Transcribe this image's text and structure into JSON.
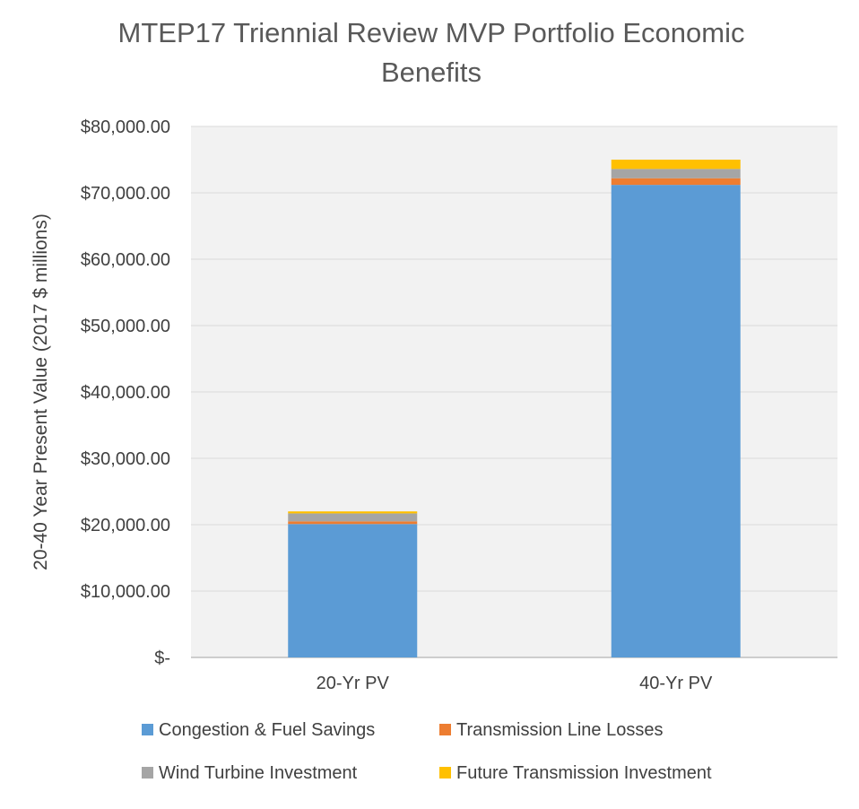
{
  "chart_data": {
    "type": "bar",
    "stacked": true,
    "title": [
      "MTEP17 Triennial Review MVP Portfolio  Economic",
      "Benefits"
    ],
    "ylabel": "20-40 Year Present Value (2017 $ millions)",
    "xlabel": "",
    "categories": [
      "20-Yr PV",
      "40-Yr PV"
    ],
    "ylim": [
      0,
      80000
    ],
    "yticks": [
      0,
      10000,
      20000,
      30000,
      40000,
      50000,
      60000,
      70000,
      80000
    ],
    "ytick_labels": [
      "$-",
      "$10,000.00",
      "$20,000.00",
      "$30,000.00",
      "$40,000.00",
      "$50,000.00",
      "$60,000.00",
      "$70,000.00",
      "$80,000.00"
    ],
    "grid": true,
    "legend_position": "bottom",
    "series": [
      {
        "name": "Congestion & Fuel Savings",
        "color": "#5b9bd5",
        "values": [
          20100,
          71200
        ]
      },
      {
        "name": "Transmission Line Losses",
        "color": "#ed7d31",
        "values": [
          400,
          1000
        ]
      },
      {
        "name": "Wind Turbine Investment",
        "color": "#a5a5a5",
        "values": [
          1200,
          1400
        ]
      },
      {
        "name": "Future Transmission Investment",
        "color": "#ffc000",
        "values": [
          300,
          1400
        ]
      }
    ],
    "legend_order": [
      0,
      1,
      2,
      3
    ]
  }
}
